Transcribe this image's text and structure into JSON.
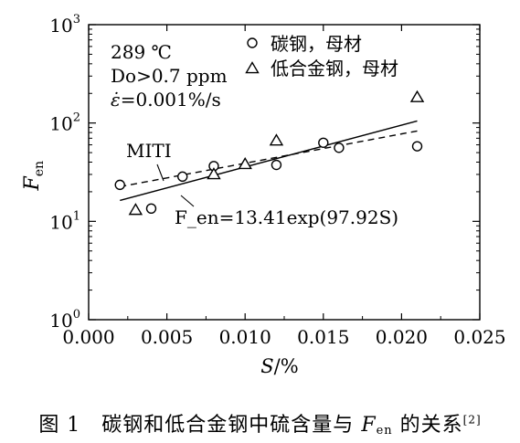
{
  "chart_data": {
    "type": "scatter",
    "x_scale": "linear",
    "y_scale": "log",
    "xlim": [
      0.0,
      0.025
    ],
    "ylim": [
      1,
      1000
    ],
    "xlabel": "S/%",
    "ylabel": "F_en",
    "x_ticks": [
      "0.000",
      "0.005",
      "0.010",
      "0.015",
      "0.020",
      "0.025"
    ],
    "y_ticks": [
      {
        "base": "10",
        "exp": "0"
      },
      {
        "base": "10",
        "exp": "1"
      },
      {
        "base": "10",
        "exp": "2"
      },
      {
        "base": "10",
        "exp": "3"
      }
    ],
    "conditions": [
      "289 ℃",
      "Do>0.7 ppm",
      "ε̇=0.001%/s"
    ],
    "legend_position": "top-right",
    "series": [
      {
        "name": "碳钢，母材",
        "marker": "circle",
        "points": [
          {
            "x": 0.002,
            "y": 23.5
          },
          {
            "x": 0.004,
            "y": 13.5
          },
          {
            "x": 0.006,
            "y": 28.5
          },
          {
            "x": 0.008,
            "y": 36.5
          },
          {
            "x": 0.012,
            "y": 37.5
          },
          {
            "x": 0.015,
            "y": 63
          },
          {
            "x": 0.016,
            "y": 56
          },
          {
            "x": 0.021,
            "y": 58
          }
        ]
      },
      {
        "name": "低合金钢，母材",
        "marker": "triangle",
        "points": [
          {
            "x": 0.003,
            "y": 13
          },
          {
            "x": 0.008,
            "y": 30
          },
          {
            "x": 0.01,
            "y": 38
          },
          {
            "x": 0.012,
            "y": 66
          },
          {
            "x": 0.021,
            "y": 182
          }
        ]
      }
    ],
    "fit_lines": [
      {
        "label": "F_en=13.41exp(97.92S)",
        "style": "solid",
        "equation": {
          "a": 13.41,
          "b": 97.92
        },
        "x_range": [
          0.002,
          0.021
        ]
      },
      {
        "label": "MITI",
        "style": "dashed",
        "endpoints": [
          {
            "x": 0.002,
            "y": 22.5
          },
          {
            "x": 0.021,
            "y": 83
          }
        ]
      }
    ]
  },
  "caption": {
    "prefix": "图 1　碳钢和低合金钢中硫含量与",
    "symbol": "F",
    "symbol_sub": "en",
    "suffix": "的关系",
    "ref": "[2]"
  }
}
